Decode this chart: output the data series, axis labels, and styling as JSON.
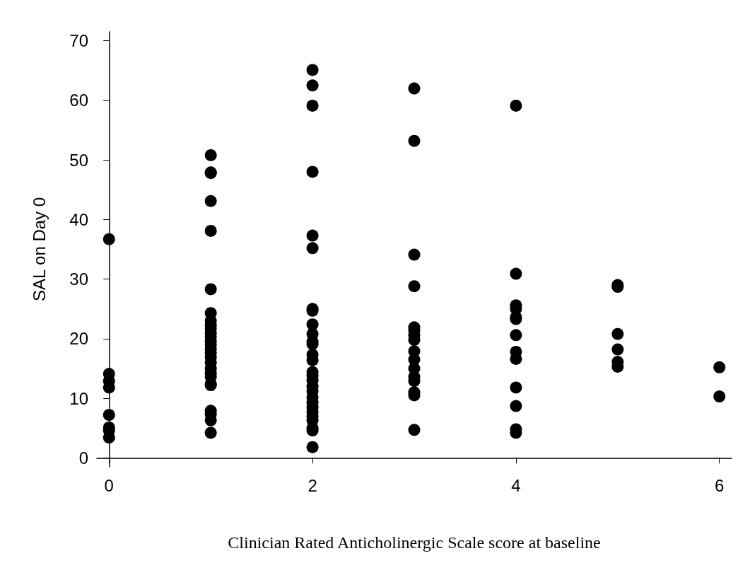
{
  "chart_data": {
    "type": "scatter",
    "xlabel": "Clinician Rated Anticholinergic Scale score at baseline",
    "ylabel": "SAL on Day 0",
    "x": [
      0,
      0,
      0,
      0,
      0,
      0,
      0,
      0,
      1,
      1,
      1,
      1,
      1,
      1,
      1,
      1,
      1,
      1,
      1,
      1,
      1,
      1,
      1,
      1,
      1,
      1,
      1,
      1,
      1,
      1,
      1,
      1,
      1,
      1,
      1,
      2,
      2,
      2,
      2,
      2,
      2,
      2,
      2,
      2,
      2,
      2,
      2,
      2,
      2,
      2,
      2,
      2,
      2,
      2,
      2,
      2,
      2,
      2,
      2,
      2,
      2,
      2,
      2,
      3,
      3,
      3,
      3,
      3,
      3,
      3,
      3,
      3,
      3,
      3,
      3,
      3,
      3,
      3,
      3,
      4,
      4,
      4,
      4,
      4,
      4,
      4,
      4,
      4,
      4,
      4,
      4,
      4,
      5,
      5,
      5,
      5,
      5,
      5,
      6,
      6
    ],
    "values": [
      36.7,
      14.1,
      12.9,
      11.8,
      7.2,
      5.1,
      4.6,
      3.4,
      50.8,
      47.9,
      47.8,
      43.1,
      38.1,
      28.3,
      24.3,
      23.0,
      22.3,
      21.7,
      21.0,
      20.3,
      19.6,
      19.0,
      18.3,
      17.6,
      16.9,
      16.0,
      15.0,
      14.2,
      13.6,
      12.4,
      12.2,
      7.9,
      7.3,
      6.3,
      4.2,
      65.1,
      62.5,
      59.1,
      48.0,
      37.3,
      35.2,
      25.0,
      24.7,
      22.4,
      20.8,
      19.5,
      19.1,
      17.3,
      16.4,
      14.4,
      13.8,
      13.0,
      12.0,
      11.2,
      10.2,
      9.3,
      8.5,
      7.7,
      7.0,
      6.3,
      5.0,
      4.6,
      1.8,
      62.0,
      53.2,
      34.1,
      28.8,
      21.9,
      21.4,
      20.6,
      19.8,
      17.9,
      16.5,
      15.0,
      13.6,
      12.9,
      11.0,
      10.5,
      4.7,
      59.1,
      30.9,
      25.6,
      25.0,
      23.6,
      23.3,
      20.6,
      17.8,
      16.6,
      11.8,
      8.7,
      4.8,
      4.2,
      29.0,
      28.7,
      20.8,
      18.2,
      16.1,
      15.3,
      15.2,
      10.3
    ],
    "color": "#000000",
    "marker": "circle",
    "xlim": [
      -0.12,
      6.12
    ],
    "xticks": [
      0,
      2,
      4,
      6
    ],
    "ylim": [
      -1.5,
      71.5
    ],
    "yticks": [
      0,
      10,
      20,
      30,
      40,
      50,
      60,
      70
    ],
    "grid": false
  }
}
